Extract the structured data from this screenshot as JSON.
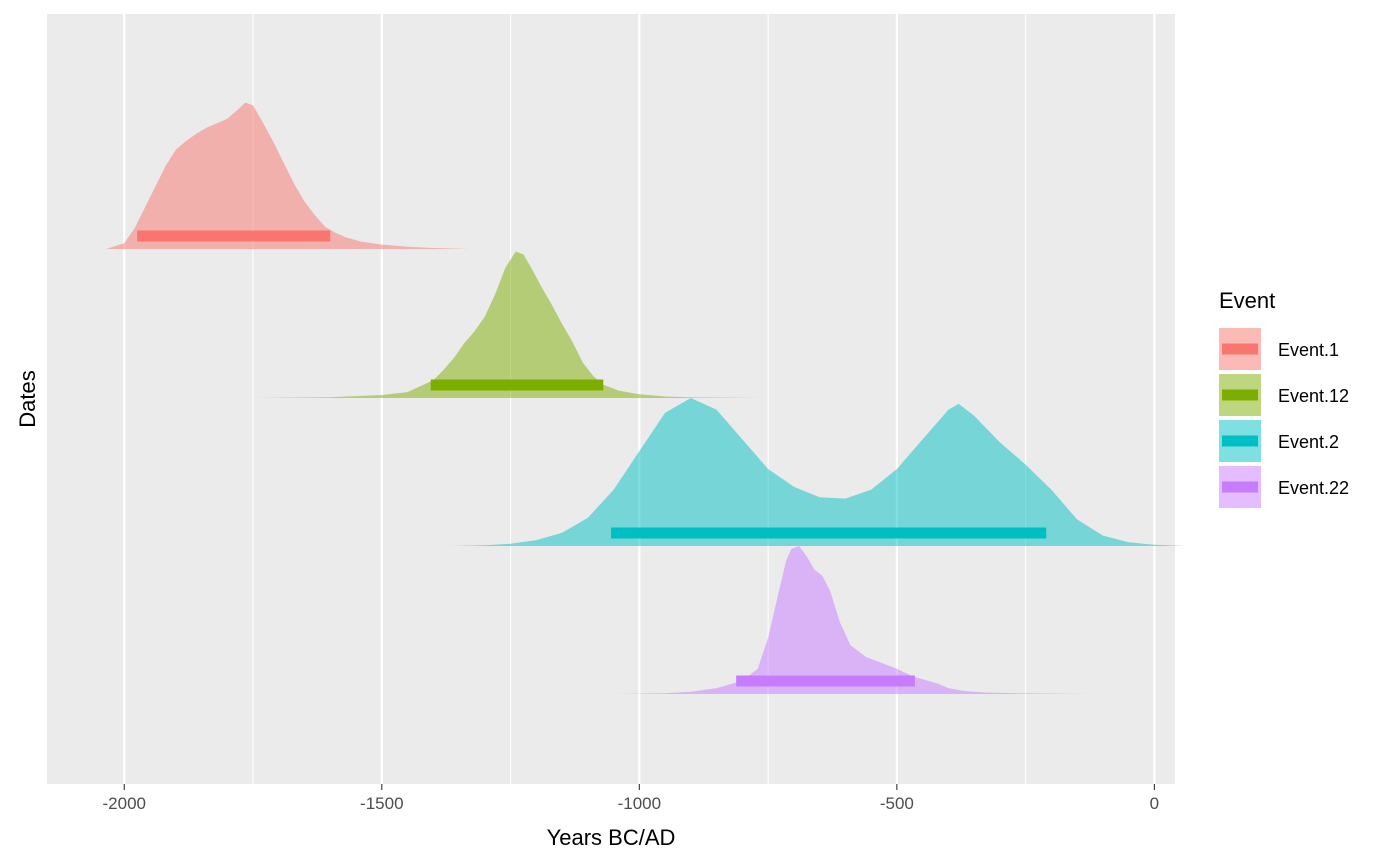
{
  "chart_data": {
    "type": "area",
    "title": "",
    "xlabel": "Years BC/AD",
    "ylabel": "Dates",
    "xlim": [
      -2150,
      40
    ],
    "xticks": [
      -2000,
      -1500,
      -1000,
      -500,
      0
    ],
    "xtick_labels": [
      "-2000",
      "-1500",
      "-1000",
      "-500",
      "0"
    ],
    "grid": true,
    "legend": {
      "title": "Event",
      "position": "right"
    },
    "series": [
      {
        "name": "Event.1",
        "color": "#F8766D",
        "interval": [
          -1975,
          -1600
        ],
        "density": [
          [
            -2035,
            0
          ],
          [
            -2000,
            0.04
          ],
          [
            -1980,
            0.14
          ],
          [
            -1960,
            0.28
          ],
          [
            -1940,
            0.42
          ],
          [
            -1920,
            0.56
          ],
          [
            -1900,
            0.67
          ],
          [
            -1880,
            0.73
          ],
          [
            -1860,
            0.78
          ],
          [
            -1840,
            0.82
          ],
          [
            -1820,
            0.85
          ],
          [
            -1800,
            0.88
          ],
          [
            -1780,
            0.94
          ],
          [
            -1765,
            0.99
          ],
          [
            -1750,
            0.97
          ],
          [
            -1730,
            0.85
          ],
          [
            -1710,
            0.72
          ],
          [
            -1690,
            0.58
          ],
          [
            -1670,
            0.44
          ],
          [
            -1650,
            0.32
          ],
          [
            -1630,
            0.23
          ],
          [
            -1610,
            0.15
          ],
          [
            -1590,
            0.11
          ],
          [
            -1570,
            0.08
          ],
          [
            -1540,
            0.05
          ],
          [
            -1500,
            0.03
          ],
          [
            -1450,
            0.015
          ],
          [
            -1400,
            0.007
          ],
          [
            -1330,
            0
          ]
        ]
      },
      {
        "name": "Event.12",
        "color": "#7CAE00",
        "interval": [
          -1405,
          -1070
        ],
        "density": [
          [
            -1750,
            0
          ],
          [
            -1600,
            0.005
          ],
          [
            -1500,
            0.02
          ],
          [
            -1450,
            0.04
          ],
          [
            -1400,
            0.12
          ],
          [
            -1380,
            0.19
          ],
          [
            -1360,
            0.27
          ],
          [
            -1340,
            0.37
          ],
          [
            -1320,
            0.45
          ],
          [
            -1300,
            0.55
          ],
          [
            -1280,
            0.7
          ],
          [
            -1260,
            0.88
          ],
          [
            -1240,
            0.99
          ],
          [
            -1225,
            0.97
          ],
          [
            -1210,
            0.88
          ],
          [
            -1190,
            0.75
          ],
          [
            -1170,
            0.63
          ],
          [
            -1150,
            0.5
          ],
          [
            -1130,
            0.38
          ],
          [
            -1110,
            0.24
          ],
          [
            -1090,
            0.15
          ],
          [
            -1070,
            0.09
          ],
          [
            -1040,
            0.05
          ],
          [
            -1000,
            0.025
          ],
          [
            -950,
            0.01
          ],
          [
            -900,
            0.004
          ],
          [
            -750,
            0
          ]
        ]
      },
      {
        "name": "Event.2",
        "color": "#00BFC4",
        "interval": [
          -1055,
          -210
        ],
        "density": [
          [
            -1370,
            0
          ],
          [
            -1300,
            0.005
          ],
          [
            -1250,
            0.015
          ],
          [
            -1200,
            0.04
          ],
          [
            -1150,
            0.09
          ],
          [
            -1100,
            0.19
          ],
          [
            -1050,
            0.38
          ],
          [
            -1000,
            0.64
          ],
          [
            -950,
            0.9
          ],
          [
            -900,
            1.0
          ],
          [
            -850,
            0.92
          ],
          [
            -800,
            0.72
          ],
          [
            -750,
            0.52
          ],
          [
            -700,
            0.4
          ],
          [
            -650,
            0.33
          ],
          [
            -600,
            0.32
          ],
          [
            -550,
            0.38
          ],
          [
            -500,
            0.52
          ],
          [
            -450,
            0.72
          ],
          [
            -400,
            0.92
          ],
          [
            -380,
            0.96
          ],
          [
            -350,
            0.88
          ],
          [
            -300,
            0.7
          ],
          [
            -250,
            0.55
          ],
          [
            -200,
            0.38
          ],
          [
            -150,
            0.18
          ],
          [
            -100,
            0.07
          ],
          [
            -50,
            0.025
          ],
          [
            0,
            0.008
          ],
          [
            60,
            0
          ]
        ]
      },
      {
        "name": "Event.22",
        "color": "#C77CFF",
        "interval": [
          -812,
          -465
        ],
        "density": [
          [
            -1050,
            0
          ],
          [
            -950,
            0.005
          ],
          [
            -900,
            0.015
          ],
          [
            -850,
            0.04
          ],
          [
            -800,
            0.09
          ],
          [
            -770,
            0.17
          ],
          [
            -750,
            0.38
          ],
          [
            -730,
            0.68
          ],
          [
            -715,
            0.9
          ],
          [
            -705,
            0.98
          ],
          [
            -690,
            1.0
          ],
          [
            -675,
            0.93
          ],
          [
            -660,
            0.84
          ],
          [
            -645,
            0.8
          ],
          [
            -630,
            0.7
          ],
          [
            -610,
            0.48
          ],
          [
            -590,
            0.33
          ],
          [
            -560,
            0.25
          ],
          [
            -530,
            0.21
          ],
          [
            -500,
            0.17
          ],
          [
            -470,
            0.12
          ],
          [
            -440,
            0.09
          ],
          [
            -420,
            0.07
          ],
          [
            -400,
            0.04
          ],
          [
            -370,
            0.02
          ],
          [
            -330,
            0.01
          ],
          [
            -250,
            0.004
          ],
          [
            -120,
            0
          ]
        ]
      }
    ]
  }
}
